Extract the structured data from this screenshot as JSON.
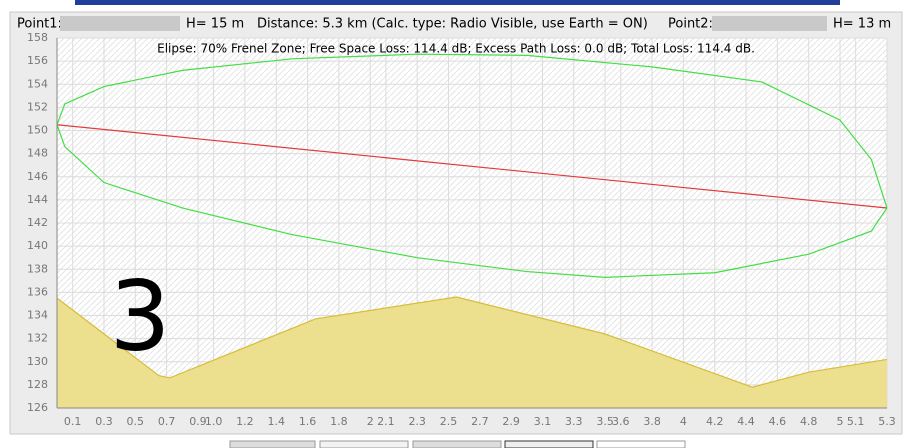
{
  "header": {
    "point1": "Point1:",
    "h1": "H= 15 m",
    "distance": "Distance: 5.3 km (Calc. type: Radio Visible, use Earth = ON)",
    "point2": "Point2:",
    "h2": "H= 13 m"
  },
  "chart_data": {
    "type": "line",
    "subtitle": "Elipse: 70% Frenel Zone;  Free Space Loss: 114.4 dB;  Excess Path Loss: 0.0 dB;  Total Loss: 114.4 dB.",
    "annotation": "3",
    "xlim": [
      0,
      5.3
    ],
    "ylim": [
      126,
      158
    ],
    "yticks": [
      126,
      128,
      130,
      132,
      134,
      136,
      138,
      140,
      142,
      144,
      146,
      148,
      150,
      152,
      154,
      156,
      158
    ],
    "xticks": [
      0.1,
      0.3,
      0.5,
      0.7,
      0.9,
      {
        "value": 1,
        "label": "1.0"
      },
      1.2,
      1.4,
      1.6,
      1.8,
      2,
      2.1,
      2.3,
      2.5,
      2.7,
      2.9,
      3.1,
      3.3,
      3.5,
      3.6,
      3.8,
      4,
      4.2,
      4.4,
      4.6,
      4.8,
      5,
      5.1,
      5.3
    ],
    "grid": true,
    "series": [
      {
        "color": "#d6bd3c",
        "fill": "#ece08f",
        "x": [
          0,
          0.65,
          0.72,
          1.65,
          2.55,
          3.5,
          4.44,
          4.8,
          5.3
        ],
        "values": [
          135.5,
          128.8,
          128.6,
          133.7,
          135.6,
          132.4,
          127.8,
          129.1,
          130.2
        ]
      },
      {
        "color": "#e03a3a",
        "x": [
          0,
          5.3
        ],
        "values": [
          150.5,
          143.3
        ]
      },
      {
        "color": "#44dd44",
        "x": [
          0,
          0.05,
          0.3,
          0.8,
          1.5,
          2.3,
          3.0,
          3.8,
          4.5,
          5.0,
          5.2,
          5.3
        ],
        "values": [
          150.5,
          152.3,
          153.8,
          155.2,
          156.2,
          156.6,
          156.5,
          155.5,
          154.2,
          150.9,
          147.5,
          143.3
        ]
      },
      {
        "color": "#44dd44",
        "x": [
          0,
          0.05,
          0.3,
          0.8,
          1.5,
          2.3,
          3.0,
          3.5,
          4.2,
          4.8,
          5.2,
          5.3
        ],
        "values": [
          150.5,
          148.6,
          145.5,
          143.3,
          141.0,
          139.0,
          137.8,
          137.3,
          137.7,
          139.3,
          141.3,
          143.3
        ]
      }
    ]
  }
}
